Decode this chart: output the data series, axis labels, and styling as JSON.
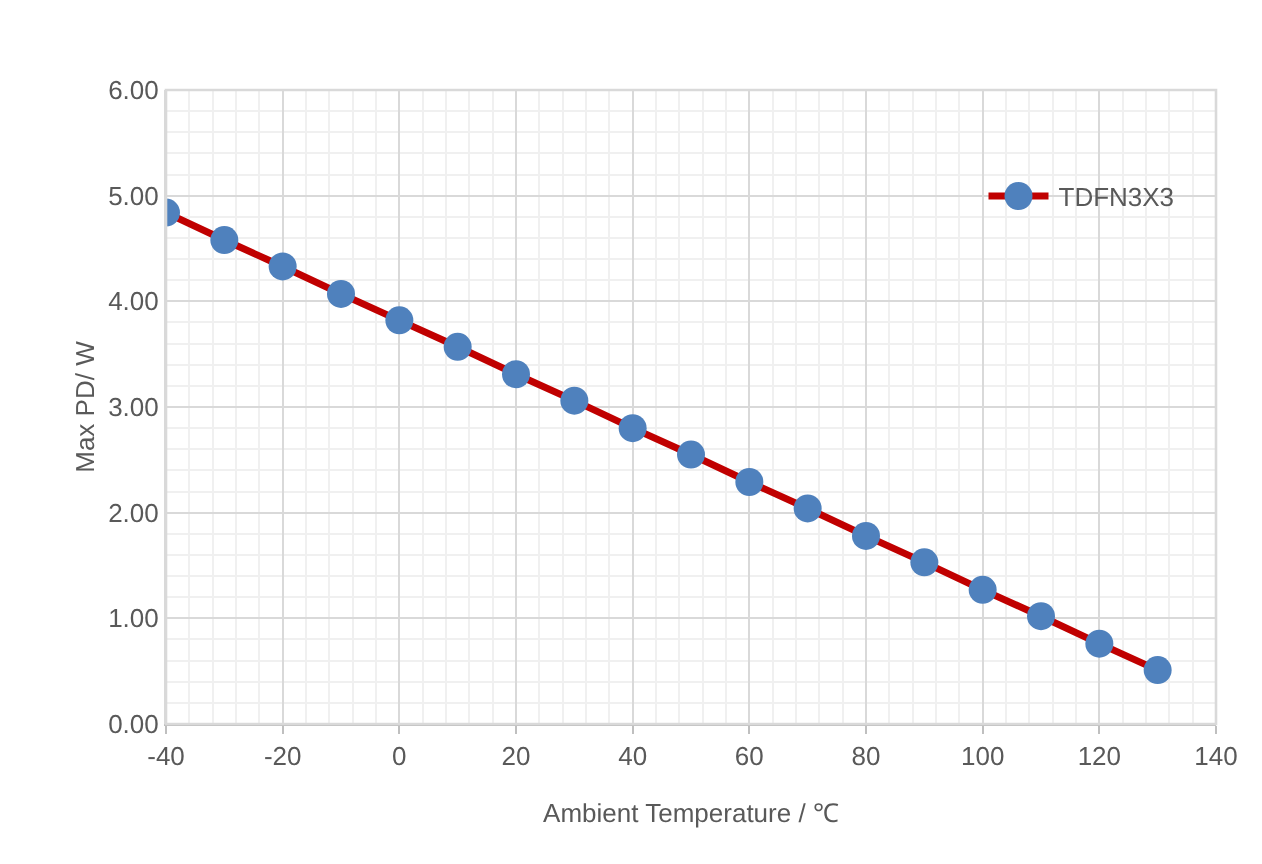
{
  "chart_data": {
    "type": "line",
    "xlabel": "Ambient Temperature / ℃",
    "ylabel": "Max PD/ W",
    "x": [
      -40,
      -30,
      -20,
      -10,
      0,
      10,
      20,
      30,
      40,
      50,
      60,
      70,
      80,
      90,
      100,
      110,
      120,
      130
    ],
    "series": [
      {
        "name": "TDFN3X3",
        "color": "#c00000",
        "values": [
          4.84,
          4.58,
          4.33,
          4.07,
          3.82,
          3.57,
          3.31,
          3.06,
          2.8,
          2.55,
          2.29,
          2.04,
          1.78,
          1.53,
          1.27,
          1.02,
          0.76,
          0.51
        ]
      }
    ],
    "xlim": [
      -40,
      140
    ],
    "xticks": [
      -40,
      -20,
      0,
      20,
      40,
      60,
      80,
      100,
      120,
      140
    ],
    "ylim": [
      0,
      6
    ],
    "yticks": [
      {
        "value": 0,
        "label": "0.00"
      },
      {
        "value": 1,
        "label": "1.00"
      },
      {
        "value": 2,
        "label": "2.00"
      },
      {
        "value": 3,
        "label": "3.00"
      },
      {
        "value": 4,
        "label": "4.00"
      },
      {
        "value": 5,
        "label": "5.00"
      },
      {
        "value": 6,
        "label": "6.00"
      }
    ],
    "grid": true,
    "legend": "top right",
    "marker": "circle",
    "line_style": "solid"
  }
}
